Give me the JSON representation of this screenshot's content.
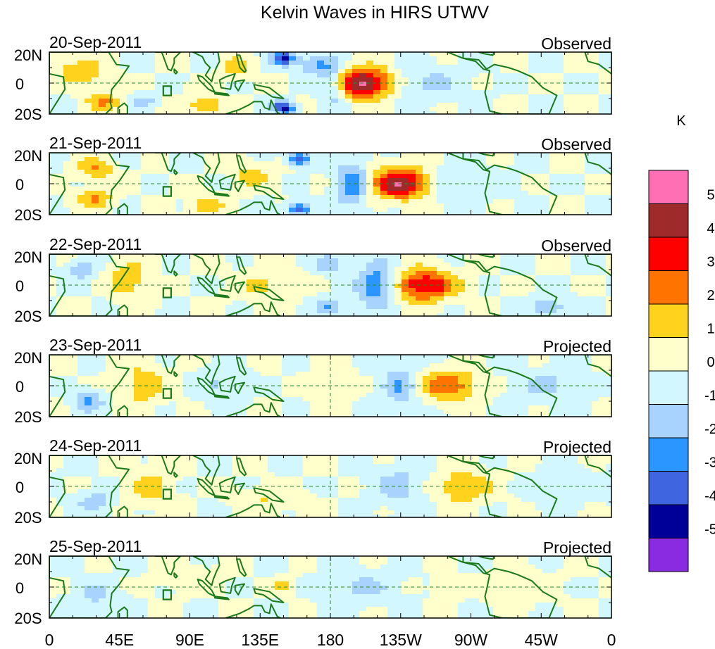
{
  "chart_data": {
    "type": "heatmap",
    "title": "Kelvin Waves in HIRS UTWV",
    "units": "K",
    "x_ticks": [
      "0",
      "45E",
      "90E",
      "135E",
      "180",
      "135W",
      "90W",
      "45W",
      "0"
    ],
    "y_ticks": [
      "20N",
      "0",
      "20S"
    ],
    "x_range_deg": [
      0,
      360
    ],
    "y_range_deg": [
      -20,
      20
    ],
    "colorbar": {
      "labels": [
        "5",
        "4",
        "3",
        "2",
        "1",
        "0",
        "-1",
        "-2",
        "-3",
        "-4",
        "-5"
      ],
      "colors": [
        "#ff6fb4",
        "#9e2a2a",
        "#ff0000",
        "#ff7400",
        "#ffd21e",
        "#ffffcc",
        "#d2f7ff",
        "#a9d3ff",
        "#2b96ff",
        "#3f66e0",
        "#000098",
        "#8a2be2"
      ]
    },
    "panels": [
      {
        "date": "20-Sep-2011",
        "status": "Observed",
        "features": [
          {
            "lon": 200,
            "lat": 0,
            "amp": 5.5,
            "sx": 14,
            "sy": 7
          },
          {
            "lon": 182,
            "lat": 0,
            "amp": -2.8,
            "sx": 7,
            "sy": 10
          },
          {
            "lon": 150,
            "lat": 16,
            "amp": -4.5,
            "sx": 5,
            "sy": 3
          },
          {
            "lon": 150,
            "lat": -16,
            "amp": -4.5,
            "sx": 5,
            "sy": 3
          },
          {
            "lon": 170,
            "lat": 12,
            "amp": -2,
            "sx": 8,
            "sy": 5
          },
          {
            "lon": 20,
            "lat": 8,
            "amp": 2,
            "sx": 10,
            "sy": 6
          },
          {
            "lon": 35,
            "lat": -12,
            "amp": 2,
            "sx": 8,
            "sy": 5
          },
          {
            "lon": 100,
            "lat": -14,
            "amp": 2,
            "sx": 8,
            "sy": 4
          },
          {
            "lon": 120,
            "lat": 10,
            "amp": 1.6,
            "sx": 6,
            "sy": 5
          },
          {
            "lon": 240,
            "lat": 0,
            "amp": -1.3,
            "sx": 18,
            "sy": 8
          },
          {
            "lon": 60,
            "lat": -12,
            "amp": -1.6,
            "sx": 6,
            "sy": 3
          }
        ]
      },
      {
        "date": "21-Sep-2011",
        "status": "Observed",
        "features": [
          {
            "lon": 225,
            "lat": 0,
            "amp": 5.2,
            "sx": 14,
            "sy": 7
          },
          {
            "lon": 195,
            "lat": 0,
            "amp": -3,
            "sx": 8,
            "sy": 10
          },
          {
            "lon": 160,
            "lat": 16,
            "amp": -3.8,
            "sx": 5,
            "sy": 3
          },
          {
            "lon": 160,
            "lat": -16,
            "amp": -3.8,
            "sx": 5,
            "sy": 3
          },
          {
            "lon": 30,
            "lat": 10,
            "amp": 2,
            "sx": 8,
            "sy": 5
          },
          {
            "lon": 30,
            "lat": -10,
            "amp": 2,
            "sx": 8,
            "sy": 5
          },
          {
            "lon": 130,
            "lat": 5,
            "amp": 1.5,
            "sx": 8,
            "sy": 6
          },
          {
            "lon": 260,
            "lat": 0,
            "amp": -1.4,
            "sx": 20,
            "sy": 8
          },
          {
            "lon": 100,
            "lat": -14,
            "amp": 1.6,
            "sx": 8,
            "sy": 4
          }
        ]
      },
      {
        "date": "22-Sep-2011",
        "status": "Observed",
        "features": [
          {
            "lon": 240,
            "lat": 0,
            "amp": 4.2,
            "sx": 14,
            "sy": 7
          },
          {
            "lon": 210,
            "lat": 0,
            "amp": -3,
            "sx": 9,
            "sy": 10
          },
          {
            "lon": 180,
            "lat": 14,
            "amp": -2,
            "sx": 7,
            "sy": 4
          },
          {
            "lon": 180,
            "lat": -14,
            "amp": -2,
            "sx": 7,
            "sy": 4
          },
          {
            "lon": 50,
            "lat": 4,
            "amp": 2,
            "sx": 8,
            "sy": 8
          },
          {
            "lon": 20,
            "lat": 10,
            "amp": -2,
            "sx": 6,
            "sy": 4
          },
          {
            "lon": 140,
            "lat": 0,
            "amp": 1.2,
            "sx": 14,
            "sy": 8
          },
          {
            "lon": 320,
            "lat": -14,
            "amp": -2,
            "sx": 8,
            "sy": 4
          }
        ]
      },
      {
        "date": "23-Sep-2011",
        "status": "Projected",
        "features": [
          {
            "lon": 255,
            "lat": 0,
            "amp": 2.8,
            "sx": 14,
            "sy": 7
          },
          {
            "lon": 225,
            "lat": 0,
            "amp": -2.2,
            "sx": 9,
            "sy": 9
          },
          {
            "lon": 60,
            "lat": 0,
            "amp": 1.8,
            "sx": 10,
            "sy": 9
          },
          {
            "lon": 180,
            "lat": 0,
            "amp": 1.2,
            "sx": 10,
            "sy": 8
          },
          {
            "lon": 25,
            "lat": -10,
            "amp": -2,
            "sx": 7,
            "sy": 5
          },
          {
            "lon": 110,
            "lat": 0,
            "amp": -1.2,
            "sx": 10,
            "sy": 8
          },
          {
            "lon": 320,
            "lat": 0,
            "amp": -1.2,
            "sx": 16,
            "sy": 8
          }
        ]
      },
      {
        "date": "24-Sep-2011",
        "status": "Projected",
        "features": [
          {
            "lon": 265,
            "lat": 0,
            "amp": 1.8,
            "sx": 14,
            "sy": 8
          },
          {
            "lon": 225,
            "lat": 0,
            "amp": -1.6,
            "sx": 12,
            "sy": 9
          },
          {
            "lon": 65,
            "lat": 0,
            "amp": 1.4,
            "sx": 10,
            "sy": 9
          },
          {
            "lon": 30,
            "lat": -10,
            "amp": -1.6,
            "sx": 8,
            "sy": 5
          },
          {
            "lon": 140,
            "lat": -8,
            "amp": 1,
            "sx": 14,
            "sy": 6
          },
          {
            "lon": 330,
            "lat": 0,
            "amp": -1,
            "sx": 16,
            "sy": 8
          }
        ]
      },
      {
        "date": "25-Sep-2011",
        "status": "Projected",
        "features": [
          {
            "lon": 255,
            "lat": 0,
            "amp": 1.2,
            "sx": 6,
            "sy": 4
          },
          {
            "lon": 150,
            "lat": 0,
            "amp": 1.2,
            "sx": 5,
            "sy": 4
          },
          {
            "lon": 200,
            "lat": 0,
            "amp": -1.2,
            "sx": 16,
            "sy": 8
          },
          {
            "lon": 30,
            "lat": -6,
            "amp": -1.2,
            "sx": 10,
            "sy": 8
          },
          {
            "lon": 90,
            "lat": 6,
            "amp": 0.8,
            "sx": 14,
            "sy": 6
          },
          {
            "lon": 300,
            "lat": 0,
            "amp": 0.8,
            "sx": 16,
            "sy": 8
          }
        ]
      }
    ]
  }
}
